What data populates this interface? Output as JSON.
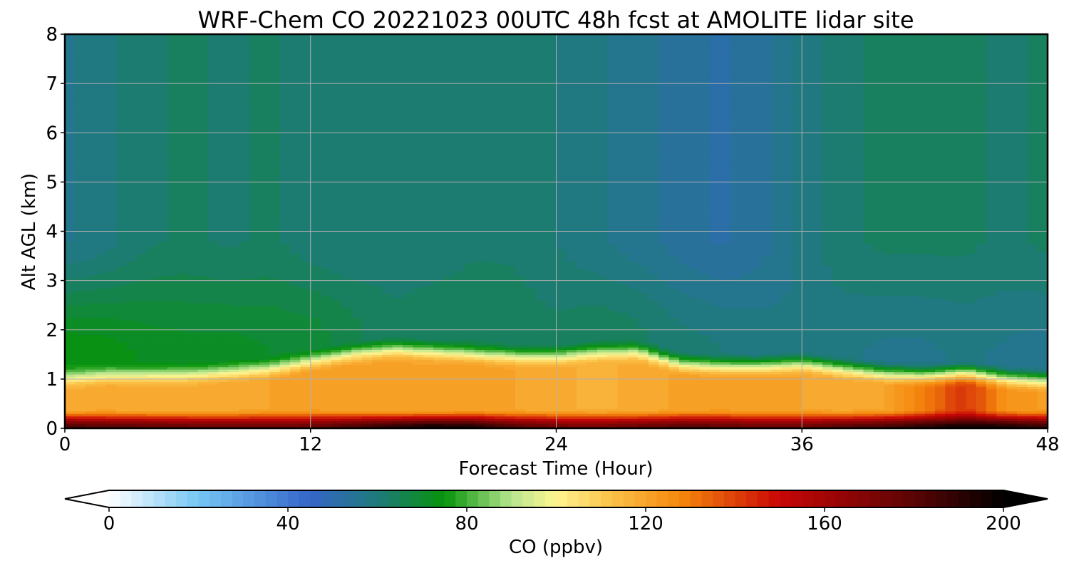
{
  "chart_data": {
    "type": "heatmap",
    "title": "WRF-Chem CO  20221023 00UTC 48h fcst at AMOLITE lidar site",
    "xlabel": "Forecast Time (Hour)",
    "ylabel": "Alt AGL (km)",
    "xlim": [
      0,
      48
    ],
    "ylim": [
      0,
      8
    ],
    "xticks": [
      0,
      12,
      24,
      36,
      48
    ],
    "yticks": [
      0,
      1,
      2,
      3,
      4,
      5,
      6,
      7,
      8
    ],
    "grid": true,
    "colorbar": {
      "label": "CO  (ppbv)",
      "min": 0,
      "max": 200,
      "step": 2.5,
      "ticks": [
        0,
        40,
        80,
        120,
        160,
        200
      ],
      "extend": "both",
      "orientation": "horizontal",
      "anchors": [
        {
          "value": 0,
          "color": "#ffffff"
        },
        {
          "value": 20,
          "color": "#74c6f4"
        },
        {
          "value": 45,
          "color": "#3565c9"
        },
        {
          "value": 60,
          "color": "#1e7a7a"
        },
        {
          "value": 75,
          "color": "#06930a"
        },
        {
          "value": 90,
          "color": "#b7e58f"
        },
        {
          "value": 100,
          "color": "#fff591"
        },
        {
          "value": 112,
          "color": "#fbc34a"
        },
        {
          "value": 128,
          "color": "#f4870c"
        },
        {
          "value": 150,
          "color": "#c80606"
        },
        {
          "value": 180,
          "color": "#5a0404"
        },
        {
          "value": 200,
          "color": "#000000"
        }
      ]
    },
    "time_hours": [
      0,
      2,
      4,
      6,
      8,
      10,
      12,
      14,
      16,
      18,
      20,
      22,
      24,
      26,
      28,
      30,
      32,
      34,
      36,
      38,
      40,
      42,
      44,
      46,
      48
    ],
    "altitude_km": [
      0,
      0.1,
      0.2,
      0.35,
      0.5,
      0.7,
      0.9,
      1.1,
      1.3,
      1.5,
      1.75,
      2.0,
      2.25,
      2.5,
      3.0,
      3.5,
      4.0,
      4.5,
      5.0,
      5.5,
      6.0,
      6.5,
      7.0,
      7.5,
      8.0
    ],
    "profile_params": {
      "pbl_top_km": [
        0.85,
        0.9,
        0.92,
        0.93,
        0.98,
        1.05,
        1.2,
        1.35,
        1.45,
        1.4,
        1.35,
        1.3,
        1.3,
        1.38,
        1.4,
        1.15,
        1.1,
        1.1,
        1.15,
        1.05,
        0.95,
        0.9,
        0.95,
        0.85,
        0.8
      ],
      "surface_ppbv": [
        185,
        182,
        180,
        178,
        176,
        176,
        178,
        184,
        192,
        198,
        195,
        182,
        176,
        174,
        178,
        182,
        180,
        176,
        176,
        182,
        186,
        192,
        198,
        196,
        188
      ],
      "boundary_layer_ppbv": [
        118,
        120,
        118,
        118,
        119,
        120,
        122,
        121,
        120,
        120,
        121,
        120,
        118,
        117,
        118,
        121,
        122,
        121,
        120,
        119,
        120,
        130,
        142,
        124,
        122
      ],
      "lower_free_troposphere_ppbv": [
        75,
        74,
        72,
        71,
        71,
        70,
        69,
        66,
        63,
        64,
        65,
        64,
        63,
        64,
        63,
        61,
        60,
        59,
        58,
        58,
        57,
        57,
        58,
        57,
        56
      ],
      "upper_free_troposphere_ppbv": [
        57,
        59,
        62,
        63,
        62,
        63,
        61,
        60,
        61,
        61,
        62,
        62,
        60,
        58,
        56,
        54,
        52,
        54,
        58,
        62,
        63,
        63,
        63,
        62,
        63
      ]
    }
  }
}
